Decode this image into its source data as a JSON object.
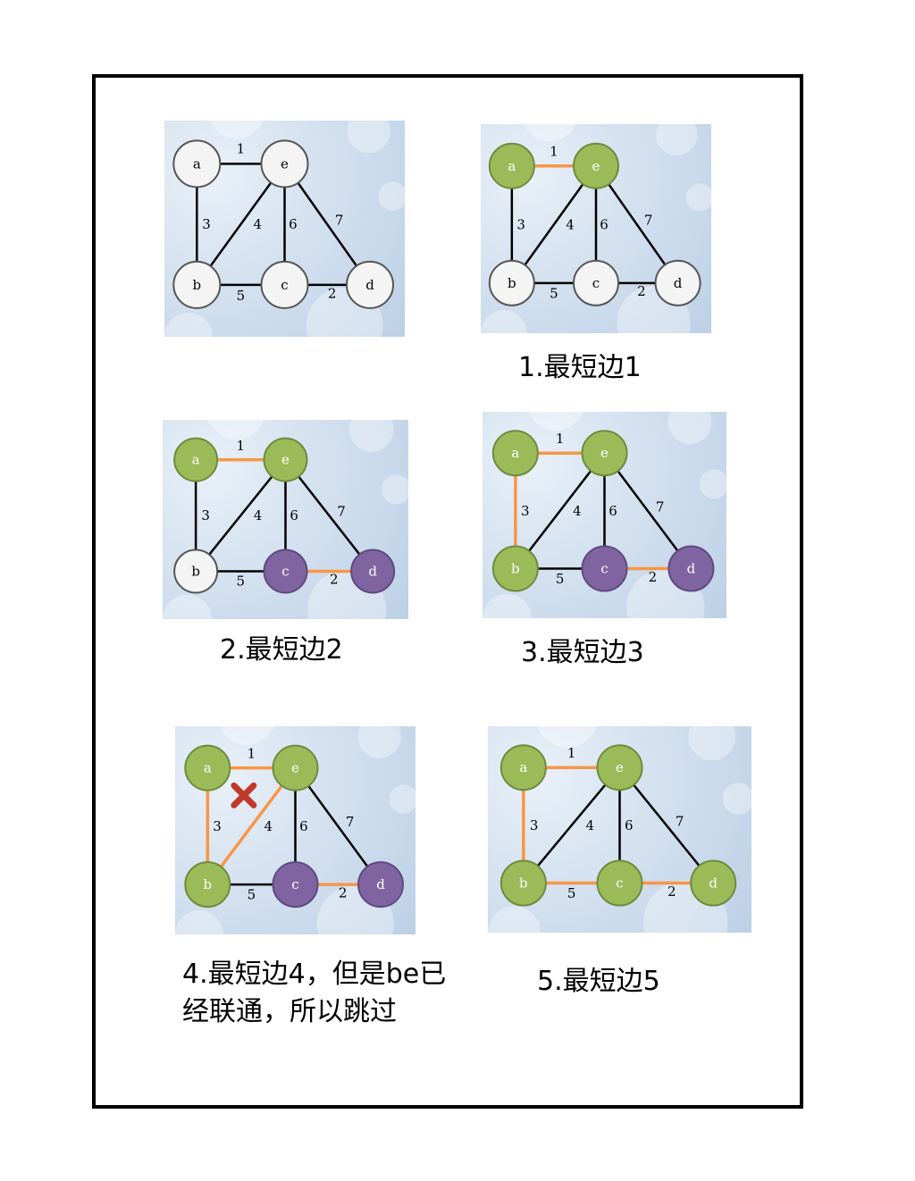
{
  "colors": {
    "white": "#f4f4f4",
    "green": "#9bbb59",
    "purple": "#8064a2",
    "chosen_edge": "#f79646",
    "edge": "#000000",
    "cross": "#c0392b"
  },
  "nodes": [
    "a",
    "e",
    "b",
    "c",
    "d"
  ],
  "edges": [
    {
      "u": "a",
      "v": "e",
      "w": "1"
    },
    {
      "u": "a",
      "v": "b",
      "w": "3"
    },
    {
      "u": "b",
      "v": "e",
      "w": "4"
    },
    {
      "u": "c",
      "v": "e",
      "w": "6"
    },
    {
      "u": "e",
      "v": "d",
      "w": "7"
    },
    {
      "u": "b",
      "v": "c",
      "w": "5"
    },
    {
      "u": "c",
      "v": "d",
      "w": "2"
    }
  ],
  "steps": [
    {
      "caption": "",
      "colors": {
        "a": "white",
        "e": "white",
        "b": "white",
        "c": "white",
        "d": "white"
      },
      "chosen": []
    },
    {
      "caption": "1.最短边1",
      "colors": {
        "a": "green",
        "e": "green",
        "b": "white",
        "c": "white",
        "d": "white"
      },
      "chosen": [
        "a-e"
      ]
    },
    {
      "caption": "2.最短边2",
      "colors": {
        "a": "green",
        "e": "green",
        "b": "white",
        "c": "purple",
        "d": "purple"
      },
      "chosen": [
        "a-e",
        "c-d"
      ]
    },
    {
      "caption": "3.最短边3",
      "colors": {
        "a": "green",
        "e": "green",
        "b": "green",
        "c": "purple",
        "d": "purple"
      },
      "chosen": [
        "a-e",
        "c-d",
        "a-b"
      ]
    },
    {
      "caption": "4.最短边4，但是be已经联通，所以跳过",
      "colors": {
        "a": "green",
        "e": "green",
        "b": "green",
        "c": "purple",
        "d": "purple"
      },
      "chosen": [
        "a-e",
        "c-d",
        "a-b",
        "b-e"
      ],
      "rejected": "b-e"
    },
    {
      "caption": "5.最短边5",
      "colors": {
        "a": "green",
        "e": "green",
        "b": "green",
        "c": "green",
        "d": "green"
      },
      "chosen": [
        "a-e",
        "c-d",
        "a-b",
        "b-c"
      ]
    }
  ]
}
